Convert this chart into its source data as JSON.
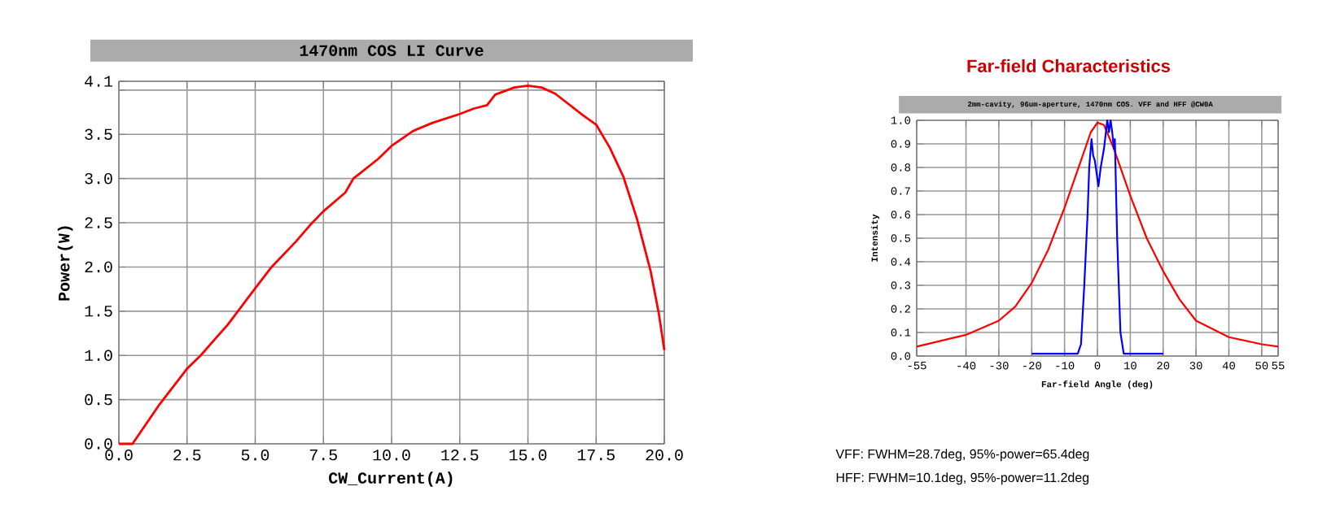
{
  "chart_data": [
    {
      "type": "line",
      "title": "1470nm COS LI Curve",
      "xlabel": "CW_Current(A)",
      "ylabel": "Power(W)",
      "x": [
        0,
        0.5,
        1.5,
        2.5,
        3,
        4,
        5,
        5.6,
        6.5,
        7,
        7.5,
        8.3,
        8.6,
        9.5,
        10,
        10.8,
        11.5,
        12.5,
        13,
        13.5,
        13.8,
        14.5,
        15,
        15.5,
        16,
        17,
        17.5,
        18,
        18.5,
        19,
        19.5,
        19.8,
        20
      ],
      "series": [
        {
          "color": "#ff0000",
          "values": [
            0,
            0,
            0.45,
            0.85,
            1.0,
            1.35,
            1.76,
            2.0,
            2.29,
            2.47,
            2.63,
            2.84,
            3.0,
            3.22,
            3.37,
            3.54,
            3.63,
            3.73,
            3.79,
            3.83,
            3.95,
            4.03,
            4.05,
            4.03,
            3.96,
            3.72,
            3.61,
            3.35,
            3.02,
            2.54,
            1.95,
            1.47,
            1.06
          ]
        }
      ],
      "xlim": [
        0,
        20
      ],
      "xticks": [
        {
          "value": 0,
          "label": "0.0"
        },
        2.5,
        {
          "value": 5,
          "label": "5.0"
        },
        7.5,
        {
          "value": 10,
          "label": "10.0"
        },
        12.5,
        {
          "value": 15,
          "label": "15.0"
        },
        17.5,
        {
          "value": 20,
          "label": "20.0"
        }
      ],
      "ylim": [
        0,
        4.1
      ],
      "yticks": [
        {
          "value": 0,
          "label": "0.0"
        },
        0.5,
        {
          "value": 1,
          "label": "1.0"
        },
        1.5,
        {
          "value": 2,
          "label": "2.0"
        },
        2.5,
        {
          "value": 3,
          "label": "3.0"
        },
        3.5,
        {
          "value": 4,
          "label": null
        },
        4.1
      ],
      "grid": true
    },
    {
      "type": "line",
      "title": "Far-field Characteristics",
      "subtitle": "2mm-cavity, 96um-aperture, 1470nm COS. VFF and HFF @CW0A",
      "xlabel": "Far-field Angle (deg)",
      "ylabel": "Intensity",
      "series": [
        {
          "color": "#ff0000",
          "x": [
            -55,
            -40,
            -30,
            -25,
            -20,
            -15,
            -10,
            -5,
            -2,
            0,
            2,
            5,
            10,
            15,
            20,
            25,
            30,
            40,
            50,
            55
          ],
          "values": [
            0.04,
            0.09,
            0.15,
            0.21,
            0.31,
            0.45,
            0.63,
            0.83,
            0.95,
            0.99,
            0.98,
            0.88,
            0.68,
            0.5,
            0.36,
            0.24,
            0.15,
            0.08,
            0.05,
            0.04
          ]
        },
        {
          "color": "#0000ff",
          "x": [
            -20,
            -6,
            -5,
            -4,
            -3,
            -2.5,
            -1.8,
            -1.3,
            -0.8,
            0,
            0.3,
            1,
            2,
            3,
            3.5,
            4,
            4.5,
            5,
            5.3,
            6,
            7,
            8,
            20
          ],
          "values": [
            0.01,
            0.01,
            0.05,
            0.3,
            0.6,
            0.8,
            0.92,
            0.85,
            0.83,
            0.75,
            0.72,
            0.8,
            0.88,
            1.0,
            0.95,
            1.0,
            0.95,
            0.88,
            0.92,
            0.5,
            0.1,
            0.01,
            0.01
          ]
        }
      ],
      "xlim": [
        -55,
        55
      ],
      "xticks": [
        -55,
        -40,
        -30,
        -20,
        -10,
        0,
        10,
        20,
        30,
        40,
        50,
        55
      ],
      "ylim": [
        0,
        1
      ],
      "yticks": [
        {
          "value": 0,
          "label": "0.0"
        },
        0.1,
        0.2,
        0.3,
        0.4,
        0.5,
        0.6,
        0.7,
        0.8,
        0.9,
        {
          "value": 1,
          "label": "1.0"
        }
      ],
      "grid": true,
      "annotations": [
        "VFF: FWHM=28.7deg, 95%-power=65.4deg",
        "HFF: FWHM=10.1deg, 95%-power=11.2deg"
      ]
    }
  ]
}
